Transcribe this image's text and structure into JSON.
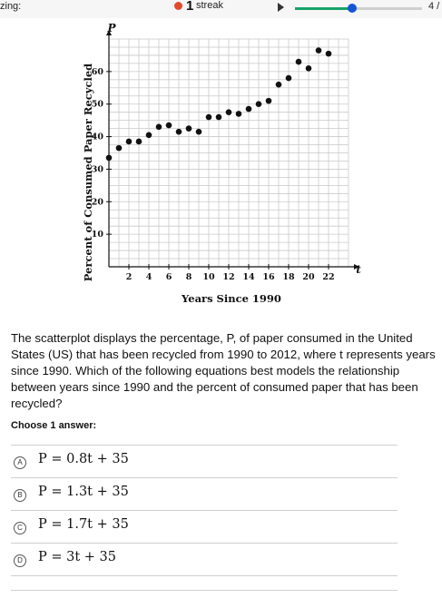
{
  "topbar": {
    "left_text": "zing:",
    "streak_count": "1",
    "streak_label": "streak",
    "progress_fraction": 0.45,
    "page_indicator": "4 /",
    "colors": {
      "flame": "#e3492b",
      "progress": "#17a36a",
      "knob": "#1455d6"
    }
  },
  "chart_data": {
    "type": "scatter",
    "title": "",
    "xlabel": "Years Since 1990",
    "ylabel": "Percent of Consumed Paper Recycled",
    "x_axis_var": "t",
    "y_axis_var": "P",
    "xlim": [
      0,
      24
    ],
    "ylim": [
      0,
      70
    ],
    "x_ticks": [
      2,
      4,
      6,
      8,
      10,
      12,
      14,
      16,
      18,
      20,
      22
    ],
    "y_ticks": [
      10,
      20,
      30,
      40,
      50,
      60
    ],
    "grid": true,
    "point_color": "#111111",
    "x": [
      0,
      1,
      2,
      3,
      4,
      5,
      6,
      7,
      8,
      9,
      10,
      11,
      12,
      13,
      14,
      15,
      16,
      17,
      18,
      19,
      20,
      21,
      22
    ],
    "y": [
      33.5,
      36.5,
      38.5,
      38.5,
      40.5,
      43,
      43.5,
      41.5,
      42.5,
      41.5,
      46,
      46,
      47.5,
      47,
      48.5,
      50,
      51,
      56,
      58,
      63,
      61,
      66.5,
      65.5
    ]
  },
  "question": {
    "text": "The scatterplot displays the percentage, P, of paper consumed in the United States (US) that has been recycled from 1990 to 2012, where t represents years since 1990. Which of the following equations best models the relationship between years since 1990 and the percent of consumed paper that has been recycled?"
  },
  "answers": {
    "prompt": "Choose 1 answer:",
    "options": [
      {
        "letter": "A",
        "equation": "P = 0.8t + 35"
      },
      {
        "letter": "B",
        "equation": "P = 1.3t + 35"
      },
      {
        "letter": "C",
        "equation": "P = 1.7t + 35"
      },
      {
        "letter": "D",
        "equation": "P = 3t + 35"
      }
    ]
  }
}
